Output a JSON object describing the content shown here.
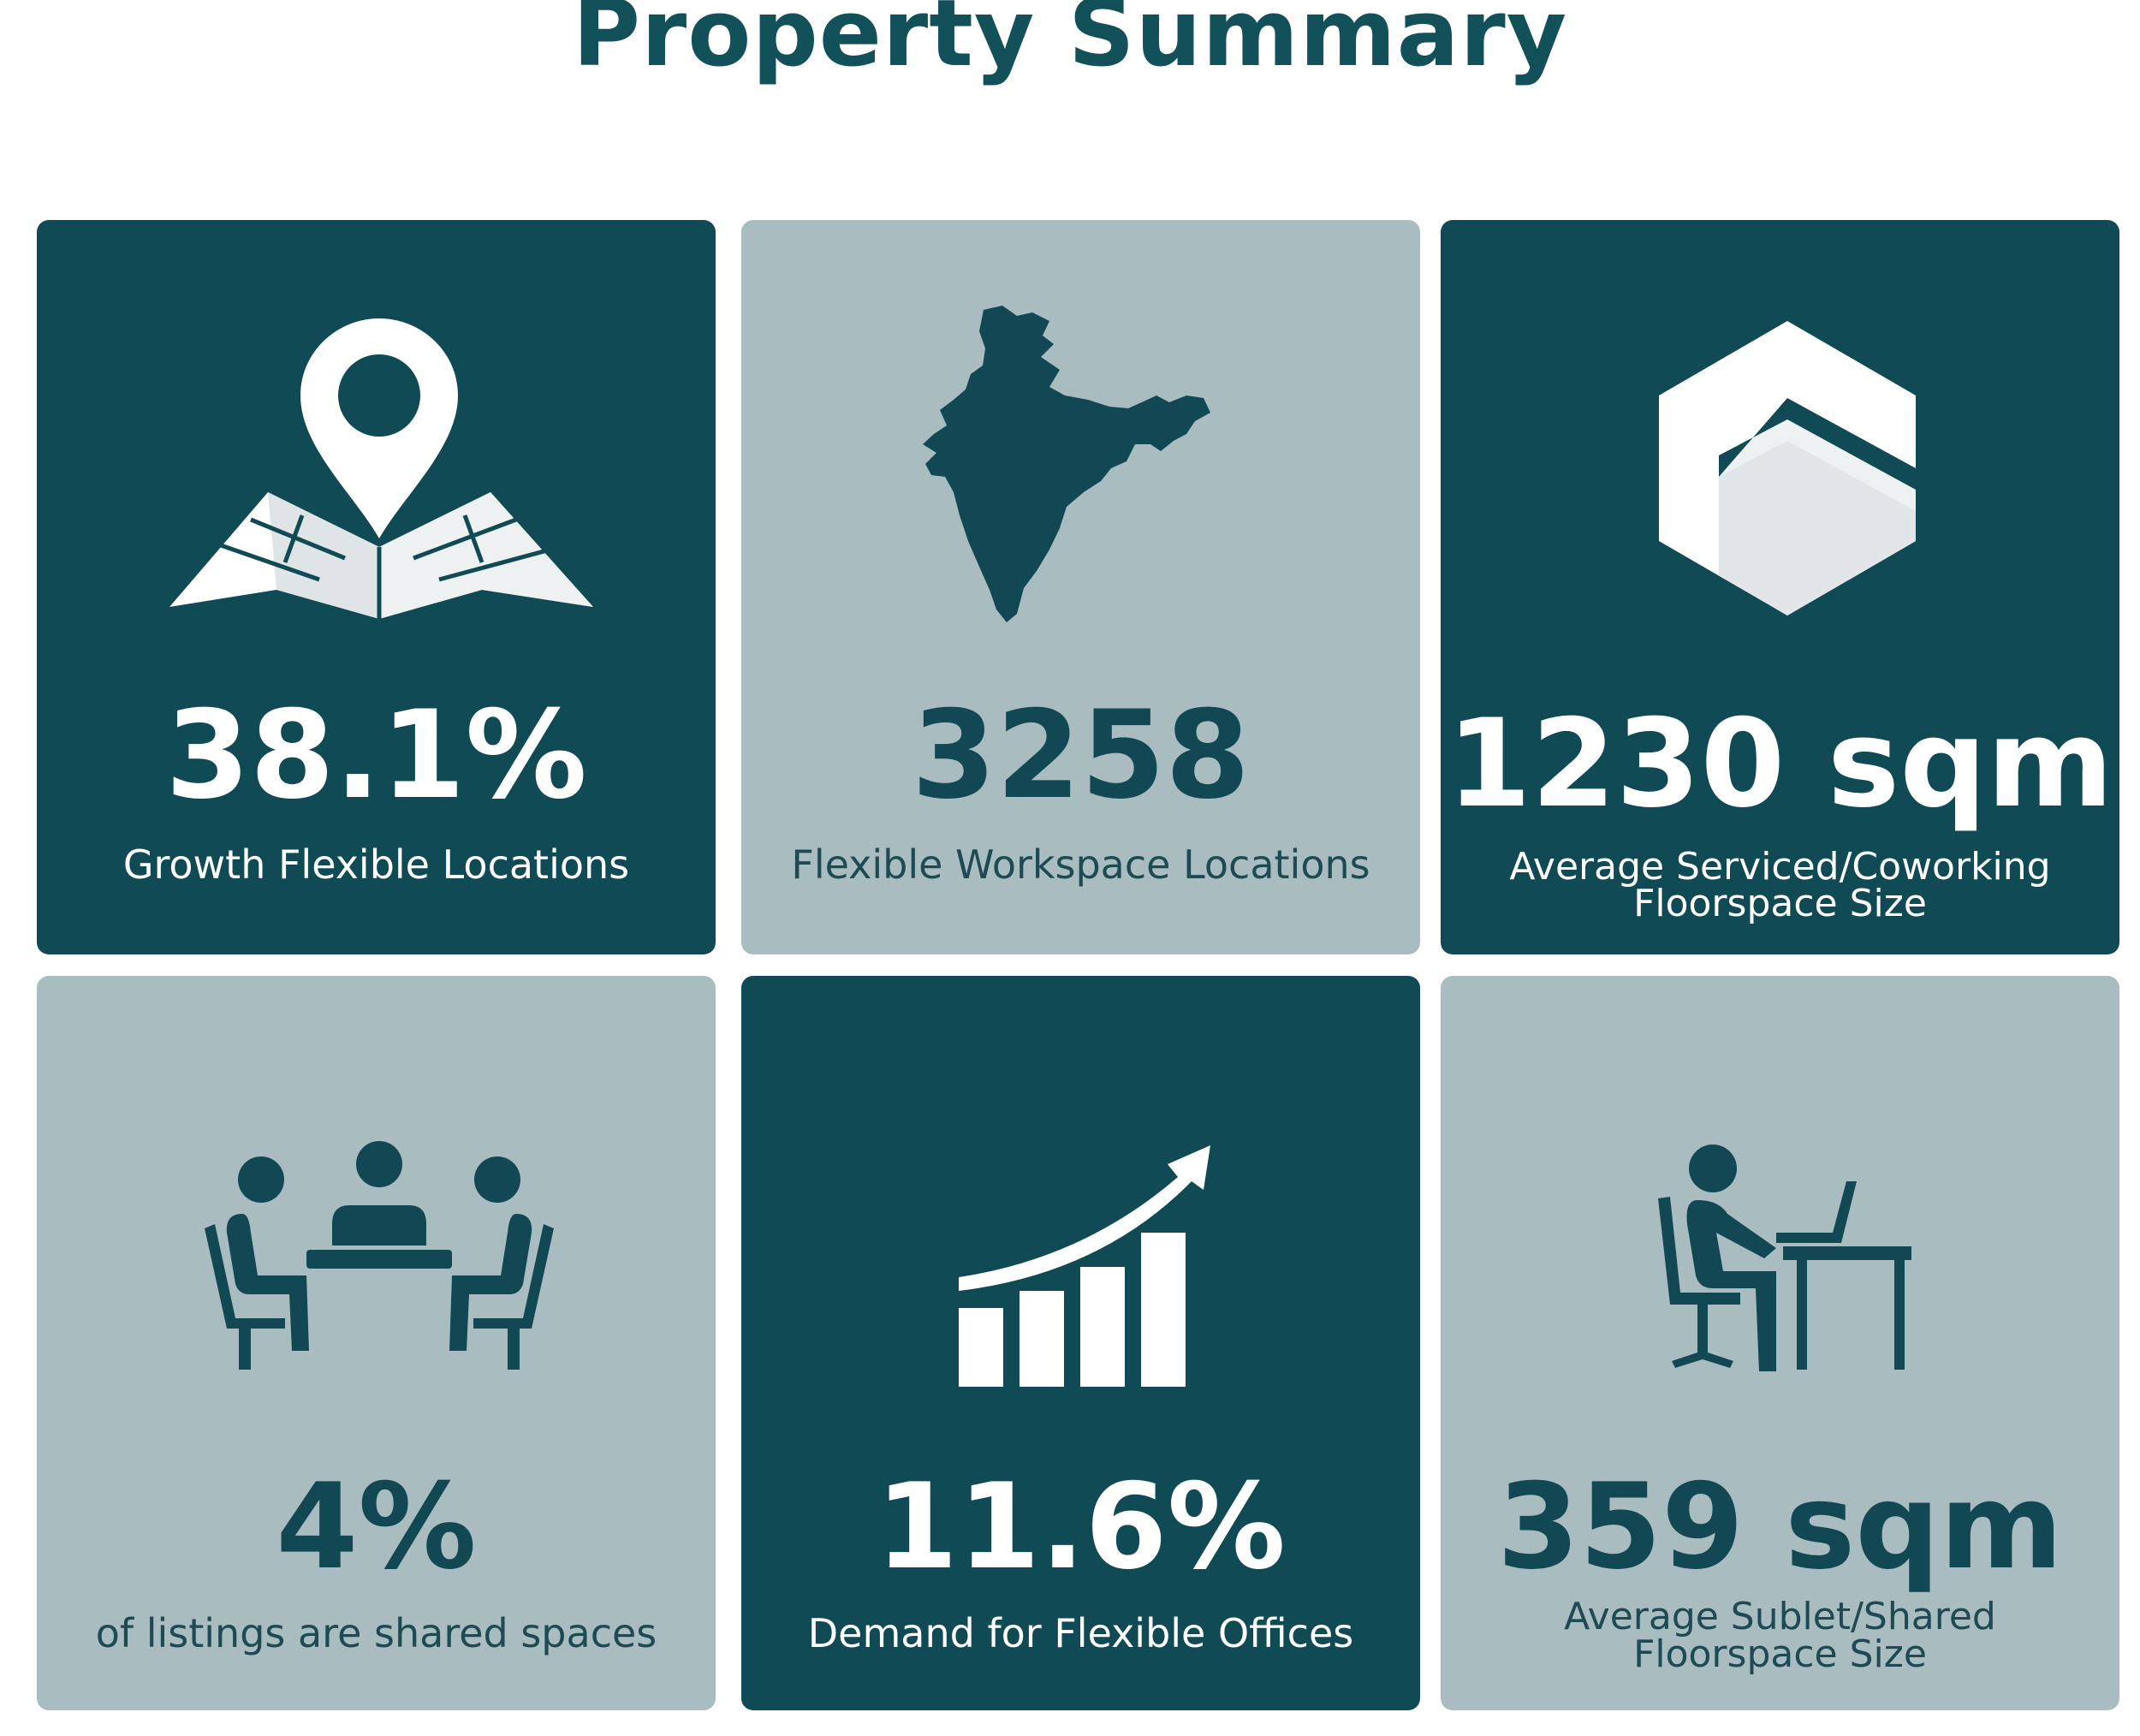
{
  "title": "Property Summary",
  "colors": {
    "dark_tile": "#0f4a55",
    "light_tile": "#a9bcc0",
    "title": "#12505a",
    "white": "#ffffff"
  },
  "cards": [
    {
      "value": "38.1%",
      "label": "Growth Flexible Locations",
      "icon": "map-pin-icon",
      "style": "dark"
    },
    {
      "value": "3258",
      "label": "Flexible Workspace Locations",
      "icon": "india-map-icon",
      "style": "light"
    },
    {
      "value": "1230 sqm",
      "label_line1": "Average Serviced/Coworking",
      "label_line2": "Floorspace Size",
      "icon": "hexagon-icon",
      "style": "dark"
    },
    {
      "value": "4%",
      "label": "of listings are shared spaces",
      "icon": "meeting-table-icon",
      "style": "light"
    },
    {
      "value": "11.6%",
      "label": "Demand for Flexible Offices",
      "icon": "growth-chart-icon",
      "style": "dark"
    },
    {
      "value": "359 sqm",
      "label_line1": "Average Sublet/Shared",
      "label_line2": "Floorspace Size",
      "icon": "desk-worker-icon",
      "style": "light"
    }
  ]
}
